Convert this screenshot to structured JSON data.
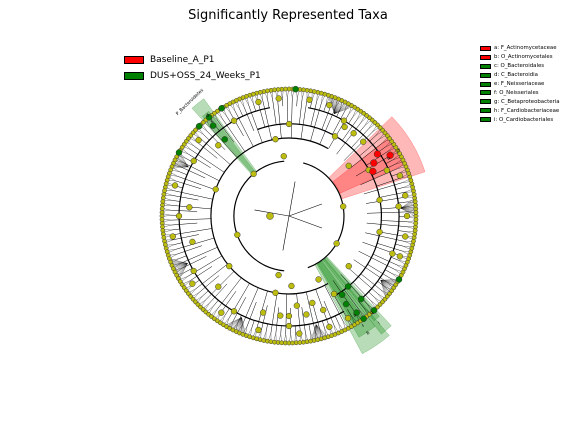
{
  "chart_data": {
    "type": "cladogram",
    "title": "Significantly Represented Taxa",
    "groups": [
      {
        "name": "Baseline_A_P1",
        "color": "#ff0000"
      },
      {
        "name": "DUS+OSS_24_Weeks_P1",
        "color": "#008000"
      }
    ],
    "taxa": [
      {
        "letter": "a",
        "label": "a: F_Actinomycetaceae",
        "group": "Baseline_A_P1",
        "color": "#ff0000"
      },
      {
        "letter": "b",
        "label": "b: O_Actinomycetales",
        "group": "Baseline_A_P1",
        "color": "#ff0000"
      },
      {
        "letter": "c",
        "label": "c: O_Bacteroidales",
        "group": "DUS+OSS_24_Weeks_P1",
        "color": "#008000"
      },
      {
        "letter": "d",
        "label": "d: C_Bacteroidia",
        "group": "DUS+OSS_24_Weeks_P1",
        "color": "#008000"
      },
      {
        "letter": "e",
        "label": "e: F_Neisseriaceae",
        "group": "DUS+OSS_24_Weeks_P1",
        "color": "#008000"
      },
      {
        "letter": "f",
        "label": "f: O_Neisseriales",
        "group": "DUS+OSS_24_Weeks_P1",
        "color": "#008000"
      },
      {
        "letter": "g",
        "label": "g: C_Betaproteobacteria",
        "group": "DUS+OSS_24_Weeks_P1",
        "color": "#008000"
      },
      {
        "letter": "h",
        "label": "h: F_Cardiobacteriaceae",
        "group": "DUS+OSS_24_Weeks_P1",
        "color": "#008000"
      },
      {
        "letter": "i",
        "label": "i: O_Cardiobacteriales",
        "group": "DUS+OSS_24_Weeks_P1",
        "color": "#008000"
      }
    ],
    "clade_label": "P_Bacteroidetes",
    "node_color_default": "#bdbd10"
  }
}
